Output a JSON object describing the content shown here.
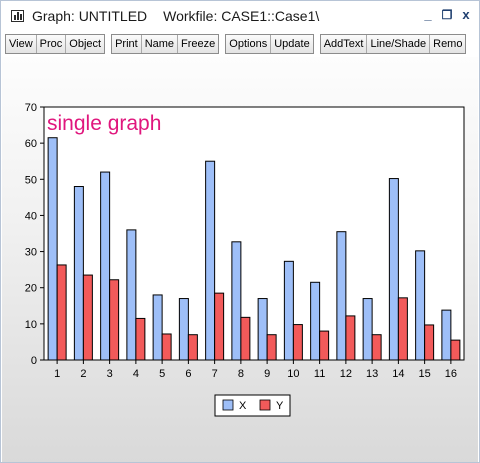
{
  "window": {
    "title": "Graph: UNTITLED",
    "workfile": "Workfile: CASE1::Case1\\",
    "controls": {
      "minimize": "_",
      "restore": "❐",
      "close": "x"
    }
  },
  "toolbar": {
    "groups": [
      [
        "View",
        "Proc",
        "Object"
      ],
      [
        "Print",
        "Name",
        "Freeze"
      ],
      [
        "Options",
        "Update"
      ],
      [
        "AddText",
        "Line/Shade",
        "Remo"
      ]
    ]
  },
  "colors": {
    "x_series": "#9ebff8",
    "y_series": "#f25a5a",
    "title": "#e0167d"
  },
  "chart_data": {
    "type": "bar",
    "title": "single graph",
    "categories": [
      "1",
      "2",
      "3",
      "4",
      "5",
      "6",
      "7",
      "8",
      "9",
      "10",
      "11",
      "12",
      "13",
      "14",
      "15",
      "16"
    ],
    "series": [
      {
        "name": "X",
        "color": "#9ebff8",
        "values": [
          61.5,
          48,
          52,
          36,
          18,
          17,
          55,
          32.7,
          17,
          27.3,
          21.5,
          35.5,
          17,
          50.2,
          30.2,
          13.8
        ]
      },
      {
        "name": "Y",
        "color": "#f25a5a",
        "values": [
          26.3,
          23.5,
          22.2,
          11.5,
          7.2,
          7,
          18.5,
          11.8,
          7,
          9.8,
          8,
          12.2,
          7,
          17.2,
          9.7,
          5.5
        ]
      }
    ],
    "ylim": [
      0,
      70
    ],
    "yticks": [
      "0",
      "10",
      "20",
      "30",
      "40",
      "50",
      "60",
      "70"
    ],
    "grid": false,
    "legend": "bottom-center"
  }
}
